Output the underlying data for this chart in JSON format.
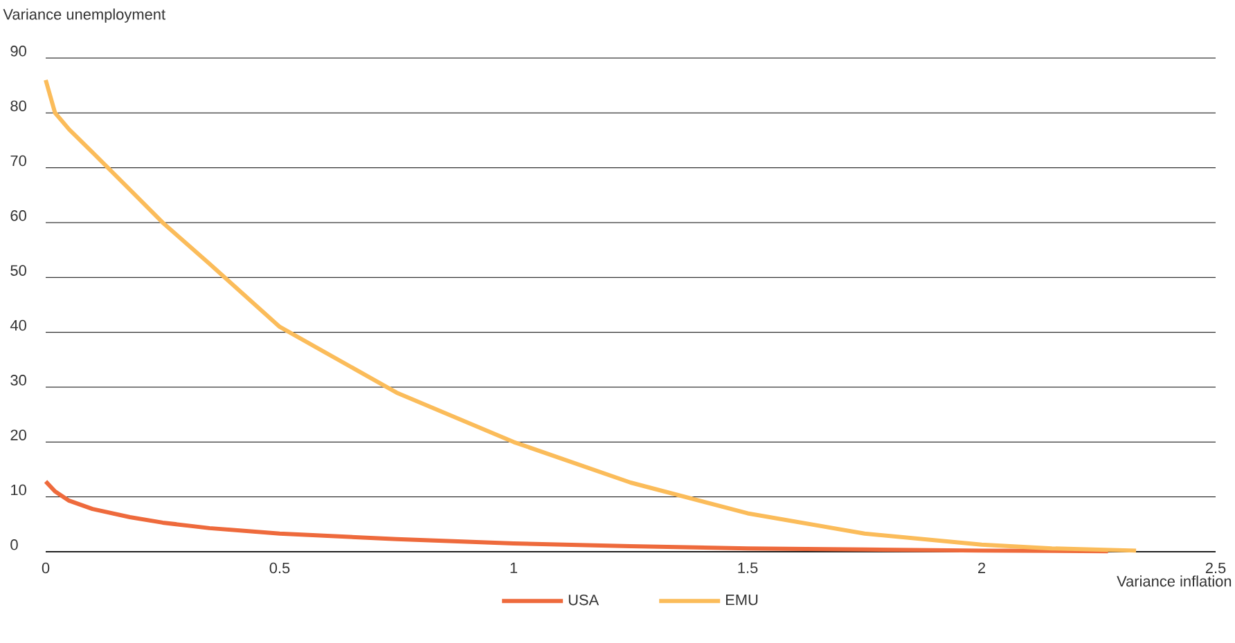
{
  "chart_data": {
    "type": "line",
    "xlabel": "Variance inflation",
    "ylabel": "Variance unemployment",
    "xlim": [
      0,
      2.5
    ],
    "ylim": [
      0,
      90
    ],
    "xticks": [
      0,
      0.5,
      1,
      1.5,
      2,
      2.5
    ],
    "yticks": [
      0,
      10,
      20,
      30,
      40,
      50,
      60,
      70,
      80,
      90
    ],
    "grid": "y",
    "legend": "bottom",
    "marker": "none",
    "line_style": "solid",
    "series": [
      {
        "name": "USA",
        "color": "#ee6a3c",
        "x": [
          0,
          0.02,
          0.05,
          0.1,
          0.18,
          0.25,
          0.35,
          0.5,
          0.75,
          1,
          1.25,
          1.5,
          1.75,
          2,
          2.27
        ],
        "values": [
          12.8,
          11,
          9.3,
          7.8,
          6.3,
          5.3,
          4.3,
          3.3,
          2.3,
          1.5,
          1,
          0.6,
          0.4,
          0.2,
          0.1
        ]
      },
      {
        "name": "EMU",
        "color": "#fbbc5a",
        "x": [
          0,
          0.02,
          0.05,
          0.1,
          0.18,
          0.25,
          0.35,
          0.5,
          0.75,
          1,
          1.25,
          1.5,
          1.75,
          2,
          2.15,
          2.33
        ],
        "values": [
          86,
          80,
          77,
          72.8,
          66,
          60,
          52.5,
          41,
          29,
          20,
          12.6,
          7,
          3.3,
          1.3,
          0.6,
          0.2
        ]
      }
    ]
  }
}
